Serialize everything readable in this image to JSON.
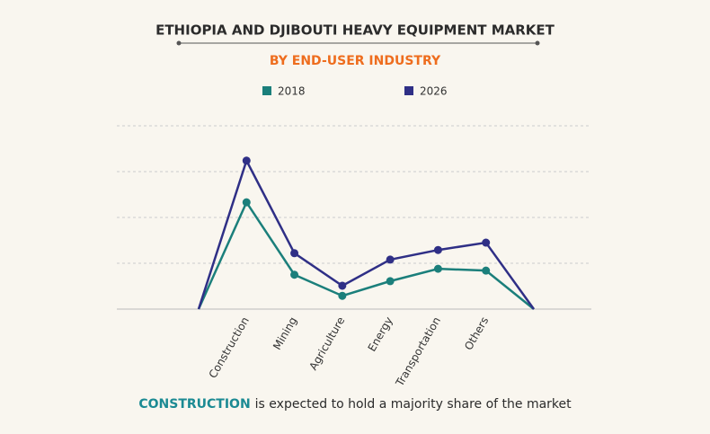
{
  "chart_data": {
    "type": "line",
    "title": "ETHIOPIA AND DJIBOUTI HEAVY EQUIPMENT MARKET",
    "subtitle": "BY END-USER INDUSTRY",
    "categories": [
      null,
      "Construction",
      "Mining",
      "Agriculture",
      "Energy",
      "Transportation",
      "Others",
      null
    ],
    "series": [
      {
        "name": "2018",
        "color": "#1b7f7b",
        "values": [
          0,
          2.33,
          0.75,
          0.29,
          0.61,
          0.88,
          0.84,
          0
        ]
      },
      {
        "name": "2026",
        "color": "#2f2f86",
        "values": [
          0,
          3.24,
          1.22,
          0.51,
          1.08,
          1.29,
          1.45,
          0
        ]
      }
    ],
    "ylim": [
      0,
      4
    ],
    "yticks": [
      0,
      1,
      2,
      3,
      4
    ],
    "grid": true
  },
  "footer": {
    "highlight": "CONSTRUCTION",
    "text": "is expected to hold a majority share of the market"
  }
}
